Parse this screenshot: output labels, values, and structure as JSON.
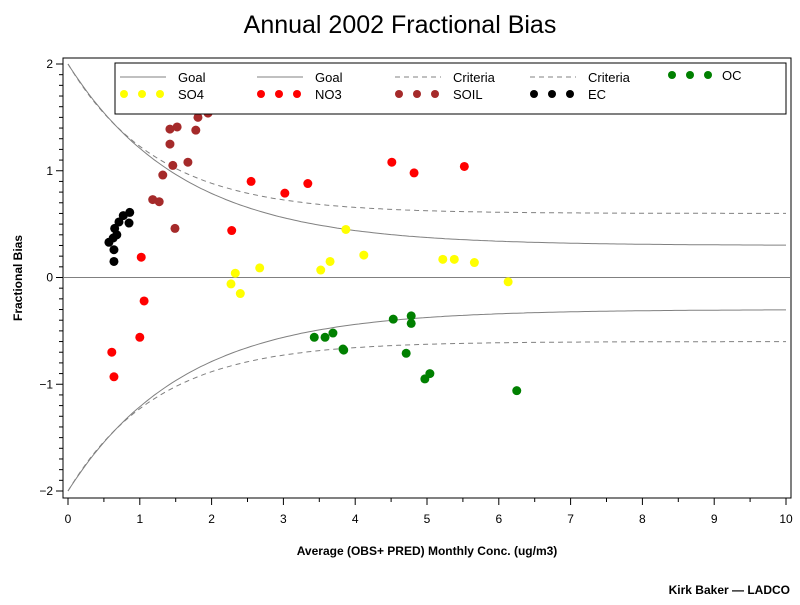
{
  "chart_data": {
    "type": "scatter",
    "title": "Annual 2002 Fractional Bias",
    "xlabel": "Average (OBS+ PRED) Monthly Conc. (ug/m3)",
    "ylabel": "Fractional Bias",
    "xlim": [
      0,
      10
    ],
    "ylim": [
      -2,
      2
    ],
    "xticks": [
      0,
      1,
      2,
      3,
      4,
      5,
      6,
      7,
      8,
      9,
      10
    ],
    "yticks": [
      -2,
      -1,
      0,
      1,
      2
    ],
    "ytick_labels": [
      "−2",
      "−1",
      "0",
      "1",
      "2"
    ],
    "grid": false,
    "legend_placement": "top",
    "credit": "Kirk Baker — LADCO",
    "reference_lines": [
      {
        "name": "Goal",
        "style": "solid",
        "color": "#808080",
        "asymptote": 0.3,
        "start": 2.0,
        "decay": 1.6
      },
      {
        "name": "Goal",
        "style": "solid",
        "color": "#808080",
        "asymptote": -0.3,
        "start": -2.0,
        "decay": 1.6
      },
      {
        "name": "Criteria",
        "style": "dashed",
        "color": "#808080",
        "asymptote": 0.6,
        "start": 2.0,
        "decay": 1.25
      },
      {
        "name": "Criteria",
        "style": "dashed",
        "color": "#808080",
        "asymptote": -0.6,
        "start": -2.0,
        "decay": 1.25
      }
    ],
    "zero_line": 0,
    "series": [
      {
        "name": "SO4",
        "color": "#ffff00",
        "points": [
          [
            2.27,
            -0.06
          ],
          [
            2.33,
            0.04
          ],
          [
            2.4,
            -0.15
          ],
          [
            2.67,
            0.09
          ],
          [
            3.52,
            0.07
          ],
          [
            3.65,
            0.15
          ],
          [
            3.87,
            0.45
          ],
          [
            4.12,
            0.21
          ],
          [
            5.22,
            0.17
          ],
          [
            5.38,
            0.17
          ],
          [
            5.66,
            0.14
          ],
          [
            6.13,
            -0.04
          ]
        ]
      },
      {
        "name": "NO3",
        "color": "#ff0000",
        "points": [
          [
            0.61,
            -0.7
          ],
          [
            0.64,
            -0.93
          ],
          [
            1.02,
            0.19
          ],
          [
            1.06,
            -0.22
          ],
          [
            1.0,
            -0.56
          ],
          [
            2.28,
            0.44
          ],
          [
            2.55,
            0.9
          ],
          [
            3.02,
            0.79
          ],
          [
            3.34,
            0.88
          ],
          [
            4.51,
            1.08
          ],
          [
            4.82,
            0.98
          ],
          [
            5.52,
            1.04
          ]
        ]
      },
      {
        "name": "SOIL",
        "color": "#a52a2a",
        "points": [
          [
            1.81,
            1.5
          ],
          [
            1.95,
            1.54
          ],
          [
            1.42,
            1.39
          ],
          [
            1.52,
            1.41
          ],
          [
            1.78,
            1.38
          ],
          [
            1.42,
            1.25
          ],
          [
            1.46,
            1.05
          ],
          [
            1.67,
            1.08
          ],
          [
            1.32,
            0.96
          ],
          [
            1.18,
            0.73
          ],
          [
            1.27,
            0.71
          ],
          [
            1.49,
            0.46
          ]
        ]
      },
      {
        "name": "EC",
        "color": "#000000",
        "points": [
          [
            0.86,
            0.61
          ],
          [
            0.85,
            0.51
          ],
          [
            0.77,
            0.58
          ],
          [
            0.71,
            0.52
          ],
          [
            0.65,
            0.46
          ],
          [
            0.68,
            0.4
          ],
          [
            0.63,
            0.37
          ],
          [
            0.57,
            0.33
          ],
          [
            0.64,
            0.26
          ],
          [
            0.64,
            0.15
          ]
        ]
      },
      {
        "name": "OC",
        "color": "#008000",
        "points": [
          [
            3.43,
            -0.56
          ],
          [
            3.58,
            -0.56
          ],
          [
            3.69,
            -0.52
          ],
          [
            3.83,
            -0.67
          ],
          [
            3.84,
            -0.68
          ],
          [
            4.53,
            -0.39
          ],
          [
            4.78,
            -0.36
          ],
          [
            4.78,
            -0.43
          ],
          [
            4.71,
            -0.71
          ],
          [
            4.97,
            -0.95
          ],
          [
            5.04,
            -0.9
          ],
          [
            6.25,
            -1.06
          ]
        ]
      }
    ],
    "legend": [
      {
        "label": "Goal",
        "kind": "line-solid"
      },
      {
        "label": "Goal",
        "kind": "line-solid"
      },
      {
        "label": "Criteria",
        "kind": "line-dashed"
      },
      {
        "label": "Criteria",
        "kind": "line-dashed"
      },
      {
        "label": "OC",
        "kind": "dots",
        "color": "#008000"
      },
      {
        "label": "SO4",
        "kind": "dots",
        "color": "#ffff00"
      },
      {
        "label": "NO3",
        "kind": "dots",
        "color": "#ff0000"
      },
      {
        "label": "SOIL",
        "kind": "dots",
        "color": "#a52a2a"
      },
      {
        "label": "EC",
        "kind": "dots",
        "color": "#000000"
      }
    ]
  }
}
